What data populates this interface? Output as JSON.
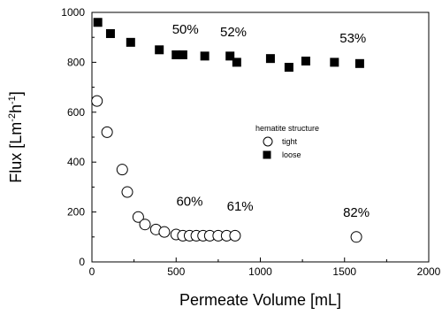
{
  "chart_data": {
    "type": "scatter",
    "xlabel": "Permeate Volume [mL]",
    "xlim": [
      0,
      2000
    ],
    "ylim": [
      0,
      1000
    ],
    "xticks": [
      0,
      500,
      1000,
      1500,
      2000
    ],
    "yticks": [
      0,
      200,
      400,
      600,
      800,
      1000
    ],
    "legend": {
      "title": "hematite structure",
      "placement": "center-right"
    },
    "series": [
      {
        "name": "tight",
        "marker": "open-circle",
        "color": "#000000",
        "x": [
          30,
          90,
          180,
          210,
          275,
          315,
          380,
          430,
          500,
          540,
          580,
          620,
          660,
          700,
          750,
          800,
          850,
          1570
        ],
        "y": [
          645,
          520,
          370,
          280,
          180,
          150,
          130,
          120,
          110,
          105,
          105,
          105,
          105,
          105,
          105,
          105,
          105,
          100
        ]
      },
      {
        "name": "loose",
        "marker": "filled-square",
        "color": "#000000",
        "x": [
          35,
          110,
          230,
          400,
          500,
          540,
          670,
          820,
          860,
          1060,
          1170,
          1270,
          1440,
          1590
        ],
        "y": [
          960,
          915,
          880,
          850,
          830,
          830,
          825,
          825,
          800,
          815,
          780,
          805,
          800,
          795
        ]
      }
    ],
    "annotations": [
      {
        "text": "50%",
        "x": 555,
        "y": 915
      },
      {
        "text": "52%",
        "x": 840,
        "y": 905
      },
      {
        "text": "53%",
        "x": 1550,
        "y": 880
      },
      {
        "text": "60%",
        "x": 580,
        "y": 225
      },
      {
        "text": "61%",
        "x": 880,
        "y": 205
      },
      {
        "text": "82%",
        "x": 1570,
        "y": 180
      }
    ]
  }
}
